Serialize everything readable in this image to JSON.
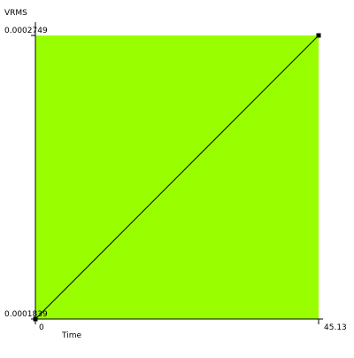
{
  "colors": {
    "plot_background": "#99ff00",
    "line": "#000000",
    "axis": "#000000",
    "page_background": "#ffffff"
  },
  "chart_data": {
    "type": "line",
    "ylabel": "VRMS",
    "xlabel": "Time",
    "xlim": [
      0,
      45.13
    ],
    "ylim": [
      0.0001839,
      0.0002749
    ],
    "x_tick_labels": [
      "0",
      "45.13"
    ],
    "y_tick_labels": [
      "0.0002749",
      "0.0001839"
    ],
    "series": [
      {
        "x": [
          0,
          45.13
        ],
        "y": [
          0.0001839,
          0.0002749
        ]
      }
    ],
    "grid": false
  }
}
